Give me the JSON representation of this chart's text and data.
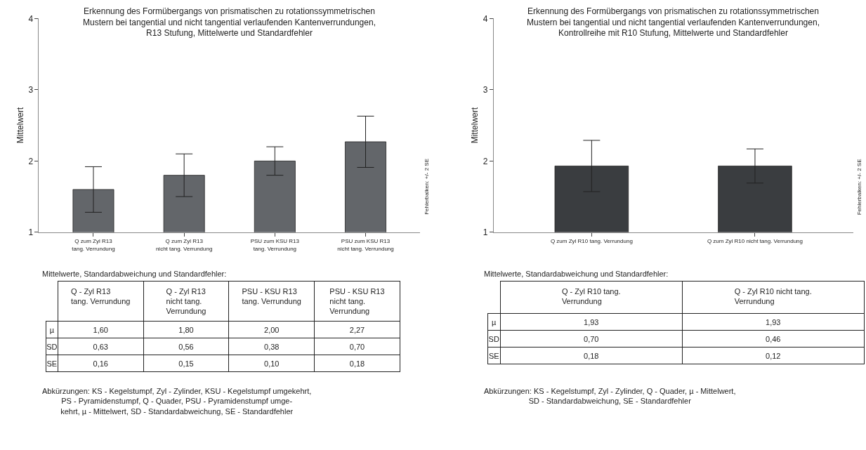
{
  "chart_data": [
    {
      "type": "bar",
      "title": "Erkennung des Formübergangs von prismatischen zu rotationssymmetrischen\nMustern bei tangential und nicht tangential verlaufenden Kantenverrundungen,\nR13 Stufung, Mittelwerte und Standardfehler",
      "ylabel": "Mittelwert",
      "categories": [
        "Q zum Zyl R13\ntang. Verrundung",
        "Q zum Zyl R13\nnicht tang. Verrundung",
        "PSU zum KSU R13\ntang. Verrundung",
        "PSU zum KSU R13\nnicht tang. Verrundung"
      ],
      "values": [
        1.6,
        1.8,
        2.0,
        2.27
      ],
      "errors": [
        0.32,
        0.3,
        0.2,
        0.36
      ],
      "color": "#63666a",
      "ylim": [
        1,
        4
      ],
      "yticks": [
        1,
        2,
        3,
        4
      ],
      "annotations": [
        "Fehlerbalken: +/- 2 SE"
      ]
    },
    {
      "type": "other",
      "title": "Mittelwerte, Standardabweichung und Standardfehler:",
      "categories": [
        "Q - Zyl R13\ntang. Verrundung",
        "Q - Zyl R13\nnicht tang.\nVerrundung",
        "PSU - KSU R13\ntang. Verrundung",
        "PSU - KSU R13\nnicht tang.\nVerrundung"
      ],
      "y_categories": [
        "µ",
        "SD",
        "SE"
      ],
      "cell_labels": [
        [
          "1,60",
          "1,80",
          "2,00",
          "2,27"
        ],
        [
          "0,63",
          "0,56",
          "0,38",
          "0,70"
        ],
        [
          "0,16",
          "0,15",
          "0,10",
          "0,18"
        ]
      ],
      "annotations": [
        "Abkürzungen: KS - Kegelstumpf, Zyl - Zylinder, KSU - Kegelstumpf umgekehrt,\nPS - Pyramidenstumpf, Q - Quader, PSU - Pyramidenstumpf umge-\nkehrt, µ - Mittelwert, SD - Standardabweichung, SE - Standardfehler"
      ]
    },
    {
      "type": "bar",
      "title": "Erkennung des Formübergangs von prismatischen zu rotationssymmetrischen\nMustern bei tangential und nicht tangential verlaufenden Kantenverrundungen,\nKontrollreihe mit R10 Stufung, Mittelwerte und Standardfehler",
      "ylabel": "Mittelwert",
      "categories": [
        "Q zum Zyl R10 tang. Verrundung",
        "Q zum Zyl R10 nicht tang. Verrundung"
      ],
      "values": [
        1.93,
        1.93
      ],
      "errors": [
        0.36,
        0.24
      ],
      "color": "#3a3d40",
      "ylim": [
        1,
        4
      ],
      "yticks": [
        1,
        2,
        3,
        4
      ],
      "annotations": [
        "Fehlerbalken: +/- 2 SE"
      ]
    },
    {
      "type": "other",
      "title": "Mittelwerte, Standardabweichung und Standardfehler:",
      "categories": [
        "Q - Zyl R10 tang.\nVerrundung",
        "Q - Zyl R10 nicht tang.\nVerrundung"
      ],
      "y_categories": [
        "µ",
        "SD",
        "SE"
      ],
      "cell_labels": [
        [
          "1,93",
          "1,93"
        ],
        [
          "0,70",
          "0,46"
        ],
        [
          "0,18",
          "0,12"
        ]
      ],
      "annotations": [
        "Abkürzungen: KS - Kegelstumpf, Zyl - Zylinder, Q - Quader, µ - Mittelwert,\nSD - Standardabweichung, SE - Standardfehler"
      ]
    }
  ]
}
